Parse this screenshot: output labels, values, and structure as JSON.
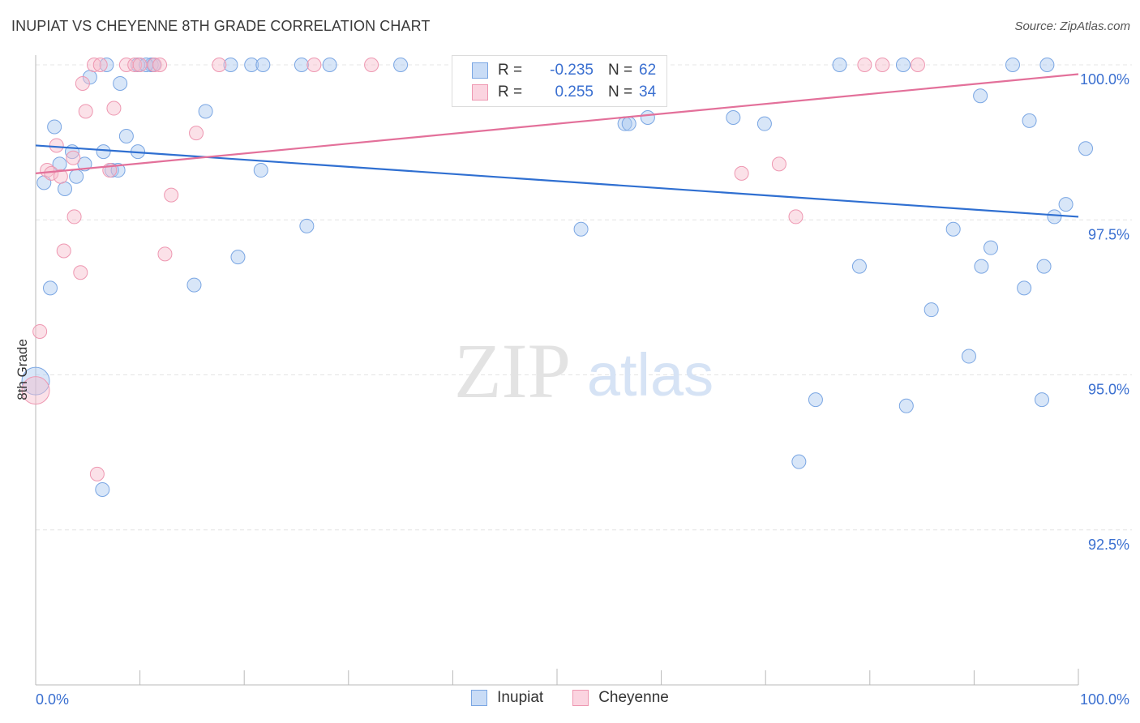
{
  "header": {
    "title": "INUPIAT VS CHEYENNE 8TH GRADE CORRELATION CHART",
    "source": "Source: ZipAtlas.com"
  },
  "watermark": {
    "zip": "ZIP",
    "atlas": "atlas"
  },
  "legend": {
    "rows": [
      {
        "r_label": "R =",
        "r_value": "-0.235",
        "n_label": "N =",
        "n_value": "62",
        "color": "#a9c8f0",
        "stroke": "#7aa6e3"
      },
      {
        "r_label": "R =",
        "r_value": "0.255",
        "n_label": "N =",
        "n_value": "34",
        "color": "#f7bccd",
        "stroke": "#ee97b1"
      }
    ]
  },
  "chart_data": {
    "type": "scatter",
    "title": "INUPIAT VS CHEYENNE 8TH GRADE CORRELATION CHART",
    "xlabel": "",
    "ylabel": "8th Grade",
    "xlim": [
      0,
      100
    ],
    "ylim": [
      89.5,
      100.35
    ],
    "x_tick_labels": [
      "0.0%",
      "100.0%"
    ],
    "y_ticks": [
      100.0,
      97.5,
      95.0,
      92.5
    ],
    "y_tick_labels": [
      "100.0%",
      "97.5%",
      "95.0%",
      "92.5%"
    ],
    "grid": true,
    "legend_position": "bottom-center",
    "series": [
      {
        "name": "Inupiat",
        "color": "#7aa6e3",
        "fill": "#a9c8f0",
        "trend": {
          "x": [
            0,
            100
          ],
          "y": [
            98.7,
            97.55
          ]
        },
        "points": [
          [
            1.4,
            96.4
          ],
          [
            1.8,
            99.0
          ],
          [
            0.8,
            98.1
          ],
          [
            2.3,
            98.4
          ],
          [
            2.8,
            98.0
          ],
          [
            3.5,
            98.6
          ],
          [
            4.7,
            98.4
          ],
          [
            6.5,
            98.6
          ],
          [
            5.2,
            99.8
          ],
          [
            6.8,
            100.0
          ],
          [
            7.3,
            98.3
          ],
          [
            8.1,
            99.7
          ],
          [
            8.7,
            98.85
          ],
          [
            9.8,
            98.6
          ],
          [
            7.9,
            98.3
          ],
          [
            3.9,
            98.2
          ],
          [
            9.8,
            100.0
          ],
          [
            11.1,
            100.0
          ],
          [
            11.3,
            100.0
          ],
          [
            10.6,
            100.0
          ],
          [
            16.3,
            99.25
          ],
          [
            15.2,
            96.45
          ],
          [
            19.4,
            96.9
          ],
          [
            18.7,
            100.0
          ],
          [
            20.7,
            100.0
          ],
          [
            21.6,
            98.3
          ],
          [
            21.8,
            100.0
          ],
          [
            25.5,
            100.0
          ],
          [
            26.0,
            97.4
          ],
          [
            28.2,
            100.0
          ],
          [
            35.0,
            100.0
          ],
          [
            47.2,
            100.0
          ],
          [
            49.2,
            100.0
          ],
          [
            52.3,
            97.35
          ],
          [
            56.5,
            99.05
          ],
          [
            56.9,
            99.05
          ],
          [
            58.7,
            99.15
          ],
          [
            66.9,
            99.15
          ],
          [
            69.9,
            99.05
          ],
          [
            74.8,
            94.6
          ],
          [
            77.1,
            100.0
          ],
          [
            79.0,
            96.75
          ],
          [
            83.2,
            100.0
          ],
          [
            83.5,
            94.5
          ],
          [
            85.9,
            96.05
          ],
          [
            88.0,
            97.35
          ],
          [
            89.5,
            95.3
          ],
          [
            90.6,
            99.5
          ],
          [
            90.7,
            96.75
          ],
          [
            91.6,
            97.05
          ],
          [
            93.7,
            100.0
          ],
          [
            94.8,
            96.4
          ],
          [
            95.3,
            99.1
          ],
          [
            96.5,
            94.6
          ],
          [
            96.7,
            96.75
          ],
          [
            97.0,
            100.0
          ],
          [
            97.7,
            97.55
          ],
          [
            98.8,
            97.75
          ],
          [
            100.7,
            98.65
          ],
          [
            73.2,
            93.6
          ],
          [
            6.4,
            93.15
          ],
          [
            0.0,
            94.9
          ]
        ]
      },
      {
        "name": "Cheyenne",
        "color": "#ee97b1",
        "fill": "#f7bccd",
        "trend": {
          "x": [
            0,
            100
          ],
          "y": [
            98.25,
            99.85
          ]
        },
        "points": [
          [
            0.4,
            95.7
          ],
          [
            1.1,
            98.3
          ],
          [
            1.5,
            98.25
          ],
          [
            2.0,
            98.7
          ],
          [
            2.4,
            98.2
          ],
          [
            2.7,
            97.0
          ],
          [
            3.6,
            98.5
          ],
          [
            3.7,
            97.55
          ],
          [
            4.3,
            96.65
          ],
          [
            4.5,
            99.7
          ],
          [
            4.8,
            99.25
          ],
          [
            5.6,
            100.0
          ],
          [
            6.2,
            100.0
          ],
          [
            5.9,
            93.4
          ],
          [
            7.1,
            98.3
          ],
          [
            7.5,
            99.3
          ],
          [
            8.7,
            100.0
          ],
          [
            9.5,
            100.0
          ],
          [
            10.0,
            100.0
          ],
          [
            11.4,
            100.0
          ],
          [
            11.9,
            100.0
          ],
          [
            12.4,
            96.95
          ],
          [
            13.0,
            97.9
          ],
          [
            15.4,
            98.9
          ],
          [
            17.6,
            100.0
          ],
          [
            26.7,
            100.0
          ],
          [
            32.2,
            100.0
          ],
          [
            67.7,
            98.25
          ],
          [
            71.3,
            98.4
          ],
          [
            72.9,
            97.55
          ],
          [
            79.5,
            100.0
          ],
          [
            81.2,
            100.0
          ],
          [
            84.6,
            100.0
          ],
          [
            0.0,
            94.75
          ]
        ]
      }
    ]
  }
}
